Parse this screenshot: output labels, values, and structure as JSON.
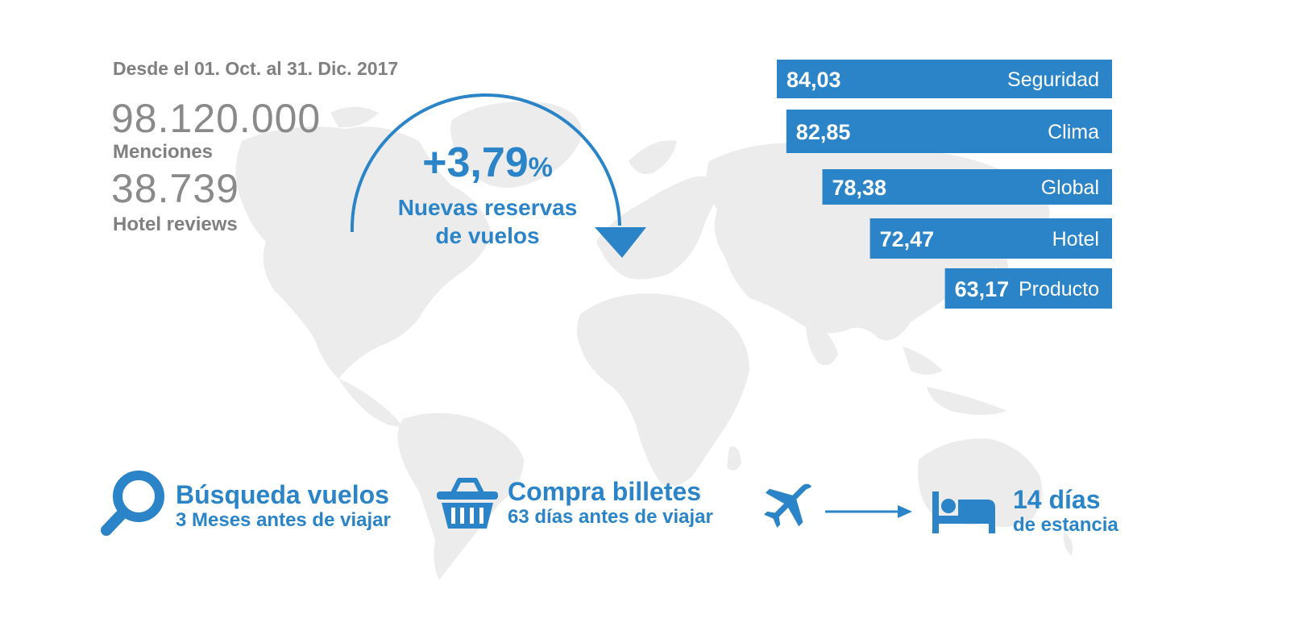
{
  "header": {
    "date_range": "Desde el 01. Oct. al 31. Dic. 2017"
  },
  "stats": {
    "mentions_value": "98.120.000",
    "mentions_label": "Menciones",
    "reviews_value": "38.739",
    "reviews_label": "Hotel reviews"
  },
  "growth": {
    "value": "+3,79",
    "unit": "%",
    "label_line1": "Nuevas reservas",
    "label_line2": "de vuelos"
  },
  "chart_data": {
    "type": "bar",
    "orientation": "horizontal",
    "title": "",
    "xlabel": "",
    "ylabel": "",
    "categories": [
      "Seguridad",
      "Clima",
      "Global",
      "Hotel",
      "Producto"
    ],
    "values": [
      84.03,
      82.85,
      78.38,
      72.47,
      63.17
    ],
    "value_labels": [
      "84,03",
      "82,85",
      "78,38",
      "72,47",
      "63,17"
    ],
    "bar_color": "#2a84c7",
    "alignment": "right",
    "grid": false
  },
  "steps": {
    "search_title": "Búsqueda vuelos",
    "search_sub": "3 Meses antes de viajar",
    "buy_title": "Compra billetes",
    "buy_sub": "63 días antes de viajar",
    "stay_title": "14 días",
    "stay_sub": "de estancia"
  },
  "icons": {
    "search": "magnifier-icon",
    "basket": "basket-icon",
    "plane": "airplane-icon",
    "arrow": "arrow-right-icon",
    "bed": "bed-icon"
  },
  "colors": {
    "accent": "#2a84c7",
    "text_gray": "#808080",
    "map": "#ececec"
  }
}
